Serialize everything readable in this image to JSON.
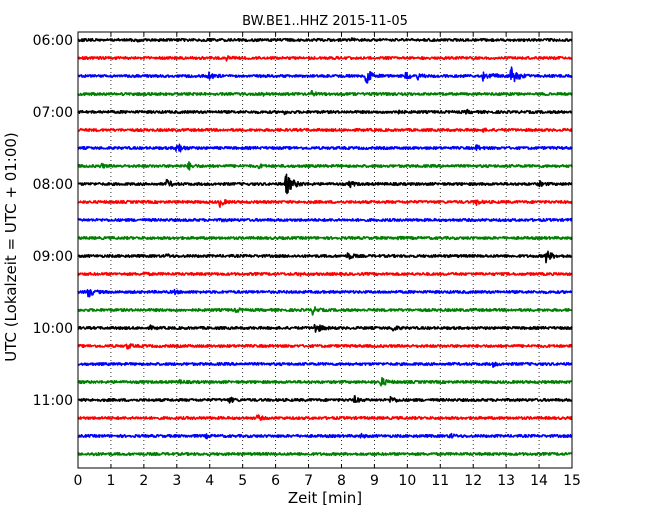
{
  "chart_data": {
    "type": "line",
    "title": "BW.BE1..HHZ 2015-11-05",
    "xlabel": "Zeit  [min]",
    "ylabel": "UTC (Lokalzeit = UTC + 01:00)",
    "xlim": [
      0,
      15
    ],
    "x_ticks": [
      0,
      1,
      2,
      3,
      4,
      5,
      6,
      7,
      8,
      9,
      10,
      11,
      12,
      13,
      14,
      15
    ],
    "x_tick_labels": [
      "0",
      "1",
      "2",
      "3",
      "4",
      "5",
      "6",
      "7",
      "8",
      "9",
      "10",
      "11",
      "12",
      "13",
      "14",
      "15"
    ],
    "y_tick_labels": [
      "06:00",
      "07:00",
      "08:00",
      "09:00",
      "10:00",
      "11:00"
    ],
    "y_tick_trace_indices": [
      0,
      4,
      8,
      12,
      16,
      20
    ],
    "grid": "vertical dotted",
    "trace_colors": [
      "#000000",
      "#ff0000",
      "#0000ff",
      "#008000"
    ],
    "traces_start_utc": "06:00",
    "trace_length_min": 15,
    "trace_count": 24,
    "events": [
      {
        "trace": 0,
        "events": [
          [
            1.8,
            0.1
          ],
          [
            8.3,
            0.12
          ]
        ]
      },
      {
        "trace": 1,
        "events": [
          [
            4.5,
            0.2
          ]
        ]
      },
      {
        "trace": 2,
        "events": [
          [
            3.95,
            0.45
          ],
          [
            8.75,
            0.7
          ],
          [
            9.95,
            0.35
          ],
          [
            10.3,
            0.3
          ],
          [
            12.3,
            0.4
          ],
          [
            12.6,
            0.3
          ],
          [
            13.15,
            0.8
          ]
        ]
      },
      {
        "trace": 3,
        "events": [
          [
            5.6,
            0.15
          ],
          [
            7.1,
            0.25
          ]
        ]
      },
      {
        "trace": 4,
        "events": [
          [
            6.25,
            0.15
          ],
          [
            9.6,
            0.3
          ],
          [
            11.8,
            0.15
          ]
        ]
      },
      {
        "trace": 5,
        "events": [
          [
            12.3,
            0.1
          ]
        ]
      },
      {
        "trace": 6,
        "events": [
          [
            3.0,
            0.55
          ],
          [
            12.1,
            0.25
          ]
        ]
      },
      {
        "trace": 7,
        "events": [
          [
            0.7,
            0.2
          ],
          [
            3.35,
            0.35
          ],
          [
            5.5,
            0.15
          ]
        ]
      },
      {
        "trace": 8,
        "events": [
          [
            2.7,
            0.4
          ],
          [
            6.3,
            1.0
          ],
          [
            8.25,
            0.3
          ],
          [
            14.0,
            0.25
          ]
        ]
      },
      {
        "trace": 9,
        "events": [
          [
            4.3,
            0.4
          ],
          [
            12.1,
            0.25
          ]
        ]
      },
      {
        "trace": 10,
        "events": [
          [
            4.4,
            0.1
          ]
        ]
      },
      {
        "trace": 11,
        "events": [
          [
            9.7,
            0.1
          ]
        ]
      },
      {
        "trace": 12,
        "events": [
          [
            2.7,
            0.15
          ],
          [
            8.2,
            0.35
          ],
          [
            14.2,
            0.6
          ]
        ]
      },
      {
        "trace": 13,
        "events": [
          [
            2.0,
            0.15
          ],
          [
            6.7,
            0.15
          ]
        ]
      },
      {
        "trace": 14,
        "events": [
          [
            0.3,
            0.5
          ],
          [
            2.9,
            0.2
          ]
        ]
      },
      {
        "trace": 15,
        "events": [
          [
            4.8,
            0.2
          ],
          [
            7.1,
            0.4
          ]
        ]
      },
      {
        "trace": 16,
        "events": [
          [
            2.2,
            0.15
          ],
          [
            7.2,
            0.55
          ],
          [
            9.55,
            0.3
          ]
        ]
      },
      {
        "trace": 17,
        "events": [
          [
            1.5,
            0.25
          ]
        ]
      },
      {
        "trace": 18,
        "events": [
          [
            12.6,
            0.2
          ]
        ]
      },
      {
        "trace": 19,
        "events": [
          [
            3.1,
            0.15
          ],
          [
            9.2,
            0.45
          ]
        ]
      },
      {
        "trace": 20,
        "events": [
          [
            4.6,
            0.25
          ],
          [
            8.4,
            0.3
          ],
          [
            9.5,
            0.35
          ]
        ]
      },
      {
        "trace": 21,
        "events": [
          [
            5.45,
            0.25
          ]
        ]
      },
      {
        "trace": 22,
        "events": [
          [
            3.9,
            0.15
          ],
          [
            8.6,
            0.15
          ],
          [
            11.3,
            0.2
          ]
        ]
      },
      {
        "trace": 23,
        "events": [
          [
            0.45,
            0.1
          ]
        ]
      }
    ]
  }
}
